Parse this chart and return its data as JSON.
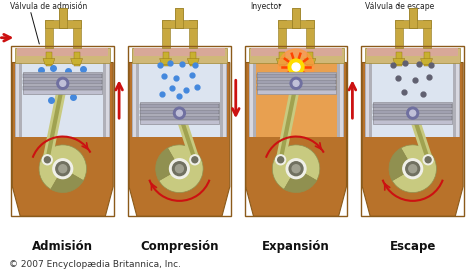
{
  "background_color": "#ffffff",
  "body_color": "#b8722a",
  "body_dark": "#8b5a1a",
  "body_light": "#c8844a",
  "cylinder_bg_1": "#dce4f0",
  "cylinder_bg_2": "#dce4f0",
  "cylinder_bg_3": "#e8a050",
  "cylinder_bg_4": "#d8d8e8",
  "piston_color": "#c0c0d0",
  "piston_dark": "#909098",
  "ring_color": "#a0a0b0",
  "rod_color": "#c8ca80",
  "rod_dark": "#a0a250",
  "crank_light": "#c8ca80",
  "crank_dark": "#909050",
  "bearing_white": "#f0f0e8",
  "bearing_dark": "#707060",
  "pipe_color": "#c8a840",
  "pipe_dark": "#907820",
  "valve_color": "#c8b030",
  "head_color": "#d0b878",
  "head_dark": "#a08830",
  "dot_blue": "#4488dd",
  "dot_dark": "#606070",
  "arrow_color": "#cc1111",
  "label_color": "#111111",
  "copyright_color": "#333333",
  "labels": [
    "Admisión",
    "Compresión",
    "Expansión",
    "Escape"
  ],
  "top_label_1": "Válvula de admisión",
  "top_label_3": "Inyector",
  "top_label_4": "Válvula de escape",
  "copyright": "© 2007 Encyclopædia Britannica, Inc.",
  "figsize": [
    4.74,
    2.71
  ],
  "dpi": 100
}
